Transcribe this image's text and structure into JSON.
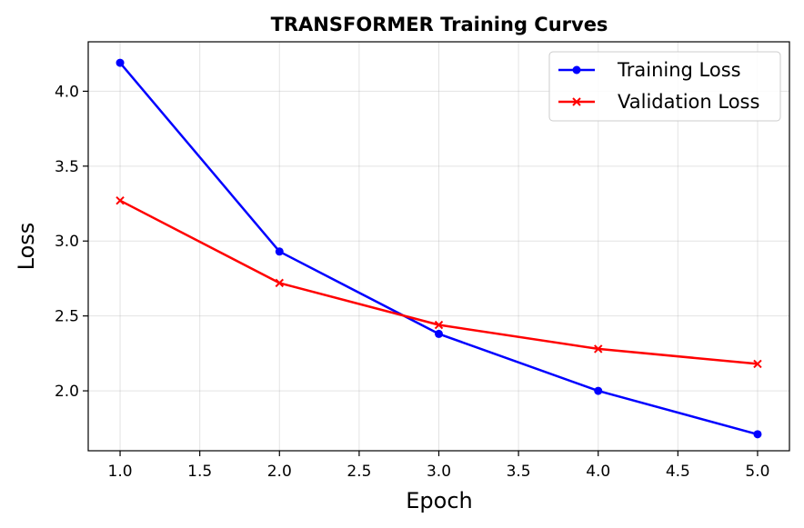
{
  "chart_data": {
    "type": "line",
    "title": "TRANSFORMER Training Curves",
    "xlabel": "Epoch",
    "ylabel": "Loss",
    "xlim": [
      0.8,
      5.2
    ],
    "ylim": [
      1.6,
      4.33
    ],
    "x": [
      1,
      2,
      3,
      4,
      5
    ],
    "xticks": [
      "1.0",
      "1.5",
      "2.0",
      "2.5",
      "3.0",
      "3.5",
      "4.0",
      "4.5",
      "5.0"
    ],
    "yticks": [
      "2.0",
      "2.5",
      "3.0",
      "3.5",
      "4.0"
    ],
    "grid": true,
    "legend_position": "top-right",
    "series": [
      {
        "name": "Training Loss",
        "values": [
          4.19,
          2.93,
          2.38,
          2.0,
          1.71
        ],
        "color": "#0000ff",
        "marker": "circle"
      },
      {
        "name": "Validation Loss",
        "values": [
          3.27,
          2.72,
          2.44,
          2.28,
          2.18
        ],
        "color": "#ff0000",
        "marker": "x"
      }
    ]
  }
}
